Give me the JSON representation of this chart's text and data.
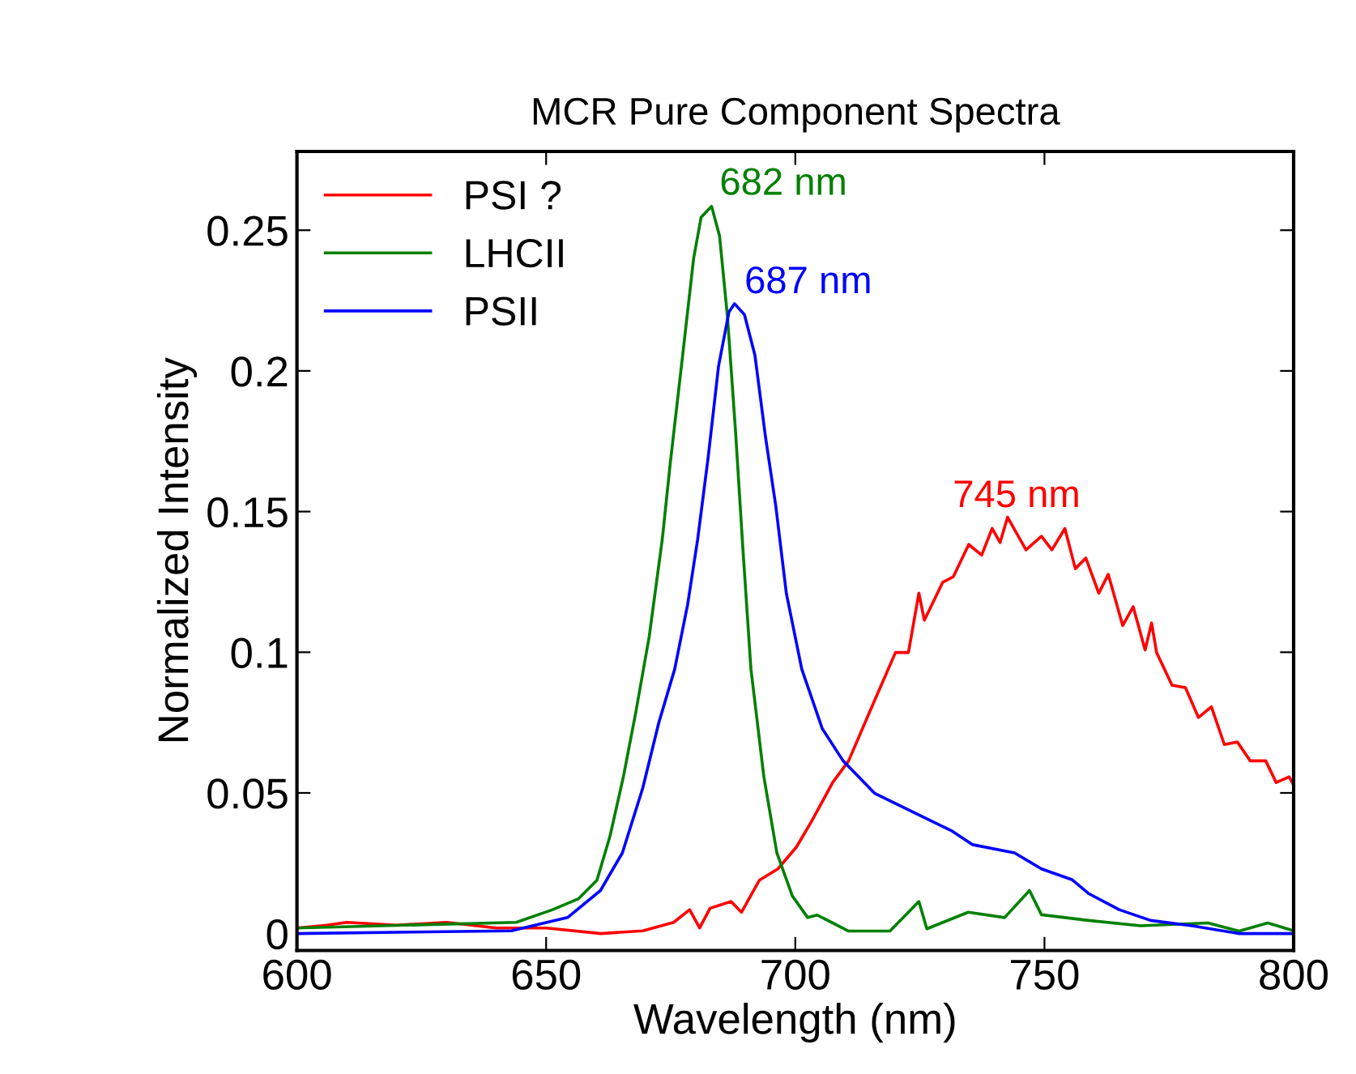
{
  "chart_data": {
    "type": "line",
    "title": "MCR Pure Component Spectra",
    "xlabel": "Wavelength (nm)",
    "ylabel": "Normalized Intensity",
    "xlim": [
      600,
      800
    ],
    "ylim": [
      -0.006,
      0.278
    ],
    "xticks": [
      600,
      650,
      700,
      750,
      800
    ],
    "yticks": [
      0,
      0.05,
      0.1,
      0.15,
      0.2,
      0.25
    ],
    "grid": false,
    "legend": "top left",
    "marker": "none",
    "line_style": "solid",
    "annotations": [
      {
        "text": "682 nm",
        "x": 683,
        "y": 0.259
      },
      {
        "text": "687 nm",
        "x": 688,
        "y": 0.224
      },
      {
        "text": "745 nm",
        "x": 742.6,
        "y": 0.148
      }
    ],
    "series": [
      {
        "name": "PSI ?",
        "color": "#ff0000",
        "x": [
          600,
          606,
          610,
          620,
          630,
          640,
          650,
          661,
          669.4,
          675.6,
          678.8,
          680.8,
          682.9,
          687.1,
          689.2,
          692.8,
          696.5,
          700.2,
          703.3,
          707.5,
          710.7,
          714.9,
          720.1,
          722.7,
          724.8,
          725.9,
          729.6,
          731.7,
          734.8,
          737.4,
          739.5,
          741.1,
          742.6,
          746.3,
          749.4,
          751.5,
          754.1,
          756.2,
          758.3,
          760.9,
          762.8,
          765.7,
          767.8,
          770.2,
          771.5,
          772.5,
          775.6,
          778.3,
          780.9,
          783.5,
          786.1,
          788.7,
          791.3,
          794.4,
          796.5,
          799.1,
          800
        ],
        "values": [
          0.002,
          0.003,
          0.004,
          0.003,
          0.004,
          0.002,
          0.002,
          0.0,
          0.001,
          0.004,
          0.0085,
          0.002,
          0.009,
          0.0114,
          0.0076,
          0.019,
          0.023,
          0.0307,
          0.04,
          0.0537,
          0.0614,
          0.0787,
          0.0999,
          0.0999,
          0.121,
          0.1114,
          0.1249,
          0.1268,
          0.1383,
          0.1345,
          0.144,
          0.139,
          0.148,
          0.1364,
          0.1412,
          0.1364,
          0.144,
          0.1297,
          0.1335,
          0.121,
          0.1277,
          0.1095,
          0.1162,
          0.1008,
          0.1104,
          0.0999,
          0.0883,
          0.0874,
          0.0768,
          0.0806,
          0.0672,
          0.0681,
          0.0614,
          0.0614,
          0.0537,
          0.0557,
          0.0528
        ]
      },
      {
        "name": "LHCII",
        "color": "#008000",
        "x": [
          600,
          644,
          651.3,
          656.5,
          660.2,
          662.8,
          665.5,
          668,
          670.7,
          673.3,
          674.9,
          677.4,
          679.6,
          681.1,
          683.2,
          684.8,
          686.4,
          688,
          689.5,
          691.1,
          693.7,
          696.3,
          699.4,
          702.5,
          704.4,
          710.7,
          719,
          724.8,
          726.4,
          734.7,
          742,
          747,
          749.4,
          758.8,
          769.3,
          782.8,
          789.1,
          794.8,
          800
        ],
        "values": [
          0.002,
          0.004,
          0.0085,
          0.0124,
          0.019,
          0.0345,
          0.0557,
          0.0787,
          0.1057,
          0.14,
          0.167,
          0.2056,
          0.24,
          0.2546,
          0.2585,
          0.248,
          0.219,
          0.1787,
          0.1364,
          0.094,
          0.0557,
          0.0287,
          0.0134,
          0.0057,
          0.0066,
          0.0009,
          0.0009,
          0.0114,
          0.0017,
          0.0076,
          0.0057,
          0.0153,
          0.0067,
          0.0047,
          0.0028,
          0.0038,
          0.0009,
          0.0038,
          0.001
        ]
      },
      {
        "name": "PSII",
        "color": "#0000ff",
        "x": [
          600,
          643,
          654.3,
          660.9,
          665.3,
          669.4,
          672.6,
          675.8,
          678.4,
          680.4,
          682.5,
          684.6,
          686.7,
          687.8,
          689.8,
          691.9,
          694,
          696.1,
          698.2,
          701.3,
          705.4,
          709.6,
          715.9,
          724.8,
          731.5,
          735.6,
          744,
          749.4,
          755.6,
          758.8,
          765,
          771.3,
          779.6,
          789.1,
          800
        ],
        "values": [
          0.0,
          0.001,
          0.0057,
          0.0153,
          0.0287,
          0.0518,
          0.0749,
          0.094,
          0.117,
          0.14,
          0.169,
          0.2017,
          0.221,
          0.2239,
          0.22,
          0.2056,
          0.1768,
          0.1518,
          0.121,
          0.094,
          0.0729,
          0.0614,
          0.0499,
          0.0422,
          0.0364,
          0.0316,
          0.0287,
          0.023,
          0.0191,
          0.0143,
          0.0085,
          0.0047,
          0.0028,
          0.0,
          0.0
        ]
      }
    ]
  }
}
